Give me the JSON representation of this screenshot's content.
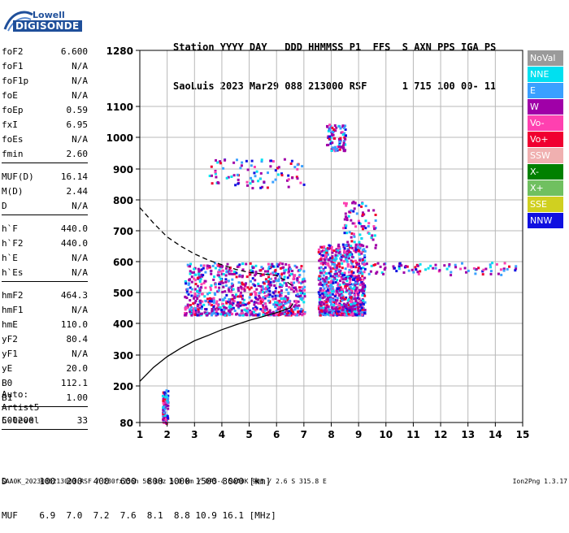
{
  "logo": {
    "line1": "Lowell",
    "line2": "DIGISONDE"
  },
  "header": {
    "line1": "Station YYYY DAY   DDD HHMMSS P1  FFS  S AXN PPS IGA PS",
    "line2": "SaoLuis 2023 Mar29 088 213000 RSF      1 715 100 00- 11"
  },
  "params": [
    {
      "label": "foF2",
      "value": "6.600"
    },
    {
      "label": "foF1",
      "value": "N/A"
    },
    {
      "label": "foF1p",
      "value": "N/A"
    },
    {
      "label": "foE",
      "value": "N/A"
    },
    {
      "label": "foEp",
      "value": "0.59"
    },
    {
      "label": "fxI",
      "value": "6.95"
    },
    {
      "label": "foEs",
      "value": "N/A"
    },
    {
      "label": "fmin",
      "value": "2.60"
    },
    {
      "sep": true
    },
    {
      "label": "MUF(D)",
      "value": "16.14"
    },
    {
      "label": "M(D)",
      "value": "2.44"
    },
    {
      "label": "D",
      "value": "N/A"
    },
    {
      "sep": true
    },
    {
      "label": "h`F",
      "value": "440.0"
    },
    {
      "label": "h`F2",
      "value": "440.0"
    },
    {
      "label": "h`E",
      "value": "N/A"
    },
    {
      "label": "h`Es",
      "value": "N/A"
    },
    {
      "sep": true
    },
    {
      "label": "hmF2",
      "value": "464.3"
    },
    {
      "label": "hmF1",
      "value": "N/A"
    },
    {
      "label": "hmE",
      "value": "110.0"
    },
    {
      "label": "yF2",
      "value": "80.4"
    },
    {
      "label": "yF1",
      "value": "N/A"
    },
    {
      "label": "yE",
      "value": "20.0"
    },
    {
      "label": "B0",
      "value": "112.1"
    },
    {
      "label": "B1",
      "value": "1.00"
    },
    {
      "sep": true
    },
    {
      "label": "C-level",
      "value": "33"
    },
    {
      "sep": true
    }
  ],
  "auto": {
    "line1": "Auto:",
    "line2": "Artist5",
    "line3": "500200"
  },
  "legend": [
    {
      "label": "NoVal",
      "color": "#9a9a9a"
    },
    {
      "label": "NNE",
      "color": "#00e0f0"
    },
    {
      "label": "E",
      "color": "#3aa0ff"
    },
    {
      "label": "W",
      "color": "#a000a8"
    },
    {
      "label": "Vo-",
      "color": "#ff40b0"
    },
    {
      "label": "Vo+",
      "color": "#f00030"
    },
    {
      "label": "SSW",
      "color": "#f0b0b0"
    },
    {
      "label": "X-",
      "color": "#008000"
    },
    {
      "label": "X+",
      "color": "#70c060"
    },
    {
      "label": "SSE",
      "color": "#d0d020"
    },
    {
      "label": "NNW",
      "color": "#1010e0"
    }
  ],
  "footer": {
    "d_row": "D      100  200  400  600  800 1000 1500 3000 [km]",
    "muf_row": "MUF    6.9  7.0  7.2  7.6  8.1  8.8 10.9 16.1 [MHz]",
    "source": "SAA0K_2023088213000.RSF / 280fx256h 50 kHz 5.0 km / DPS-4 SAA0K 903 / 2.6 S 315.8 E",
    "version": "Ion2Png 1.3.17"
  },
  "chart_data": {
    "type": "scatter",
    "xlim": [
      1,
      15
    ],
    "ylim": [
      80,
      1280
    ],
    "x_ticks": [
      1,
      2,
      3,
      4,
      5,
      6,
      7,
      8,
      9,
      10,
      11,
      12,
      13,
      14,
      15
    ],
    "y_ticks": [
      80,
      200,
      300,
      400,
      500,
      600,
      700,
      800,
      900,
      1000,
      1100,
      1280
    ],
    "grid": true,
    "series": [
      {
        "name": "electron density profile",
        "x": [
          1.0,
          1.5,
          2.0,
          2.5,
          3.0,
          3.5,
          4.0,
          4.5,
          5.0,
          5.5,
          6.0,
          6.5,
          6.6
        ],
        "y": [
          215,
          260,
          295,
          322,
          345,
          362,
          380,
          395,
          410,
          422,
          435,
          450,
          464
        ]
      },
      {
        "name": "dashed trace",
        "x": [
          1.0,
          1.5,
          2.0,
          2.5,
          3.0,
          3.5,
          4.0,
          4.5,
          5.0,
          5.5,
          6.0,
          6.3,
          6.6
        ],
        "y": [
          775,
          725,
          680,
          650,
          625,
          605,
          590,
          575,
          565,
          560,
          555,
          540,
          520
        ]
      }
    ],
    "echo_clusters": [
      {
        "x": [
          2.6,
          7.0
        ],
        "y": [
          430,
          600
        ],
        "dense": true
      },
      {
        "x": [
          7.5,
          9.2
        ],
        "y": [
          430,
          660
        ],
        "dense": true
      },
      {
        "x": [
          8.4,
          9.6
        ],
        "y": [
          640,
          800
        ],
        "dense": false
      },
      {
        "x": [
          3.5,
          7.0
        ],
        "y": [
          840,
          935
        ],
        "dense": false
      },
      {
        "x": [
          7.8,
          8.5
        ],
        "y": [
          960,
          1045
        ],
        "dense": false
      },
      {
        "x": [
          9.0,
          14.8
        ],
        "y": [
          560,
          600
        ],
        "dense": false
      },
      {
        "x": [
          1.8,
          2.0
        ],
        "y": [
          80,
          190
        ],
        "dense": false
      }
    ]
  }
}
